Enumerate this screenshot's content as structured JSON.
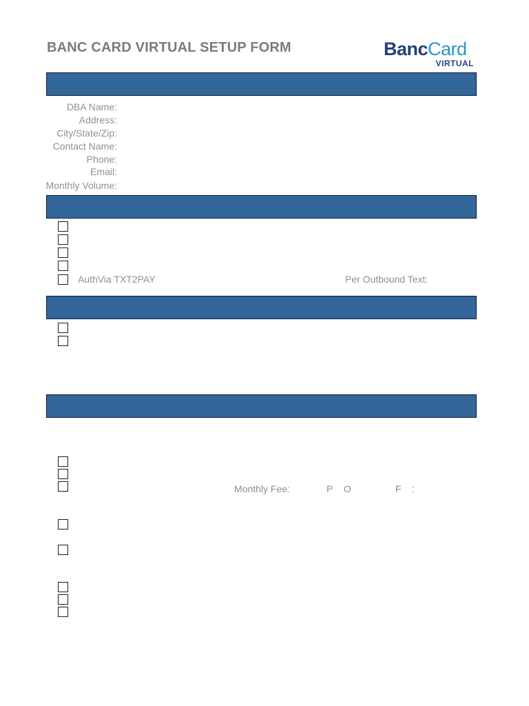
{
  "form": {
    "title": "BANC CARD VIRTUAL SETUP FORM"
  },
  "logo": {
    "brand_first": "Banc",
    "brand_second": "Card",
    "subtitle": "VIRTUAL"
  },
  "merchant_info": {
    "fields": [
      {
        "label": "DBA Name:",
        "value": ""
      },
      {
        "label": "Address:",
        "value": ""
      },
      {
        "label": "City/State/Zip:",
        "value": ""
      },
      {
        "label": "Contact Name:",
        "value": ""
      },
      {
        "label": "Phone:",
        "value": ""
      },
      {
        "label": "Email:",
        "value": ""
      },
      {
        "label": "Monthly Volume:",
        "value": ""
      }
    ]
  },
  "section2": {
    "checkboxes": [
      {
        "checked": false
      },
      {
        "checked": false
      },
      {
        "checked": false
      },
      {
        "checked": false
      },
      {
        "checked": false,
        "label": "AuthVia TXT2PAY"
      }
    ],
    "per_outbound_text_label": "Per Outbound Text:"
  },
  "section3": {
    "checkboxes": [
      {
        "checked": false
      },
      {
        "checked": false
      }
    ]
  },
  "section4": {
    "checkboxes": [
      {
        "checked": false
      },
      {
        "checked": false
      },
      {
        "checked": false
      },
      {
        "checked": false
      },
      {
        "checked": false
      },
      {
        "checked": false
      },
      {
        "checked": false
      },
      {
        "checked": false
      }
    ],
    "monthly_fee_label": "Monthly Fee:",
    "fee_letters": [
      "P",
      "O",
      "F",
      ":"
    ]
  },
  "colors": {
    "section_bar": "#336699",
    "logo_dark": "#23417c",
    "logo_light": "#2a95c9"
  }
}
